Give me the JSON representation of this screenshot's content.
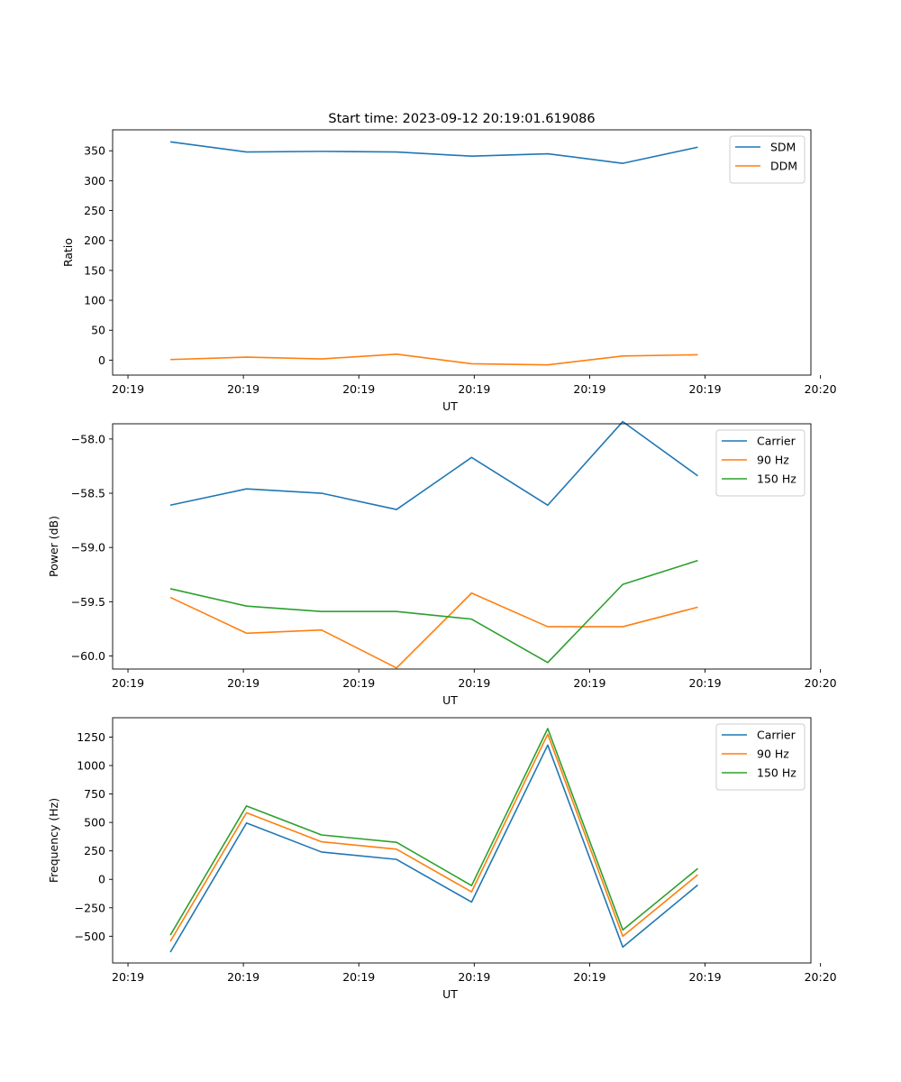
{
  "figure_title": "Start time: 2023-09-12 20:19:01.619086",
  "colors": {
    "c0": "#1f77b4",
    "c1": "#ff7f0e",
    "c2": "#2ca02c"
  },
  "chart_data": [
    {
      "type": "line",
      "title": "Start time: 2023-09-12 20:19:01.619086",
      "xlabel": "UT",
      "ylabel": "Ratio",
      "xlim": [
        -0.5,
        5.55
      ],
      "x": [
        0.0,
        0.66,
        1.31,
        1.96,
        2.61,
        3.27,
        3.92,
        4.57
      ],
      "xticks": [
        -0.367,
        0.633,
        1.633,
        2.633,
        3.633,
        4.633,
        5.633
      ],
      "xtick_labels": [
        "20:19",
        "20:19",
        "20:19",
        "20:19",
        "20:19",
        "20:19",
        "20:20"
      ],
      "ylim": [
        -25,
        385
      ],
      "yticks": [
        0,
        50,
        100,
        150,
        200,
        250,
        300,
        350
      ],
      "ytick_labels": [
        "0",
        "50",
        "100",
        "150",
        "200",
        "250",
        "300",
        "350"
      ],
      "legend_position": "top-right",
      "series": [
        {
          "name": "SDM",
          "color": "#1f77b4",
          "values": [
            365,
            348,
            349,
            348,
            341,
            345,
            329,
            356
          ]
        },
        {
          "name": "DDM",
          "color": "#ff7f0e",
          "values": [
            1,
            5,
            2,
            10,
            -6,
            -8,
            7,
            9
          ]
        }
      ]
    },
    {
      "type": "line",
      "xlabel": "UT",
      "ylabel": "Power (dB)",
      "xlim": [
        -0.5,
        5.55
      ],
      "x": [
        0.0,
        0.66,
        1.31,
        1.96,
        2.61,
        3.27,
        3.92,
        4.57
      ],
      "xticks": [
        -0.367,
        0.633,
        1.633,
        2.633,
        3.633,
        4.633,
        5.633
      ],
      "xtick_labels": [
        "20:19",
        "20:19",
        "20:19",
        "20:19",
        "20:19",
        "20:19",
        "20:20"
      ],
      "ylim": [
        -60.12,
        -57.86
      ],
      "yticks": [
        -60.0,
        -59.5,
        -59.0,
        -58.5,
        -58.0
      ],
      "ytick_labels": [
        "−60.0",
        "−59.5",
        "−59.0",
        "−58.5",
        "−58.0"
      ],
      "legend_position": "top-right",
      "series": [
        {
          "name": "Carrier",
          "color": "#1f77b4",
          "values": [
            -58.61,
            -58.46,
            -58.5,
            -58.65,
            -58.17,
            -58.61,
            -57.84,
            -58.34
          ]
        },
        {
          "name": "90 Hz",
          "color": "#ff7f0e",
          "values": [
            -59.46,
            -59.79,
            -59.76,
            -60.11,
            -59.42,
            -59.73,
            -59.73,
            -59.55
          ]
        },
        {
          "name": "150 Hz",
          "color": "#2ca02c",
          "values": [
            -59.38,
            -59.54,
            -59.59,
            -59.59,
            -59.66,
            -60.06,
            -59.34,
            -59.12
          ]
        }
      ]
    },
    {
      "type": "line",
      "xlabel": "UT",
      "ylabel": "Frequency (Hz)",
      "xlim": [
        -0.5,
        5.55
      ],
      "x": [
        0.0,
        0.66,
        1.31,
        1.96,
        2.61,
        3.27,
        3.92,
        4.57
      ],
      "xticks": [
        -0.367,
        0.633,
        1.633,
        2.633,
        3.633,
        4.633,
        5.633
      ],
      "xtick_labels": [
        "20:19",
        "20:19",
        "20:19",
        "20:19",
        "20:19",
        "20:19",
        "20:20"
      ],
      "ylim": [
        -735,
        1420
      ],
      "yticks": [
        -500,
        -250,
        0,
        250,
        500,
        750,
        1000,
        1250
      ],
      "ytick_labels": [
        "−500",
        "−250",
        "0",
        "250",
        "500",
        "750",
        "1000",
        "1250"
      ],
      "legend_position": "top-right",
      "series": [
        {
          "name": "Carrier",
          "color": "#1f77b4",
          "values": [
            -640,
            495,
            240,
            175,
            -200,
            1180,
            -595,
            -50
          ]
        },
        {
          "name": "90 Hz",
          "color": "#ff7f0e",
          "values": [
            -545,
            585,
            330,
            265,
            -110,
            1275,
            -500,
            40
          ]
        },
        {
          "name": "150 Hz",
          "color": "#2ca02c",
          "values": [
            -490,
            645,
            390,
            325,
            -55,
            1325,
            -445,
            95
          ]
        }
      ]
    }
  ]
}
